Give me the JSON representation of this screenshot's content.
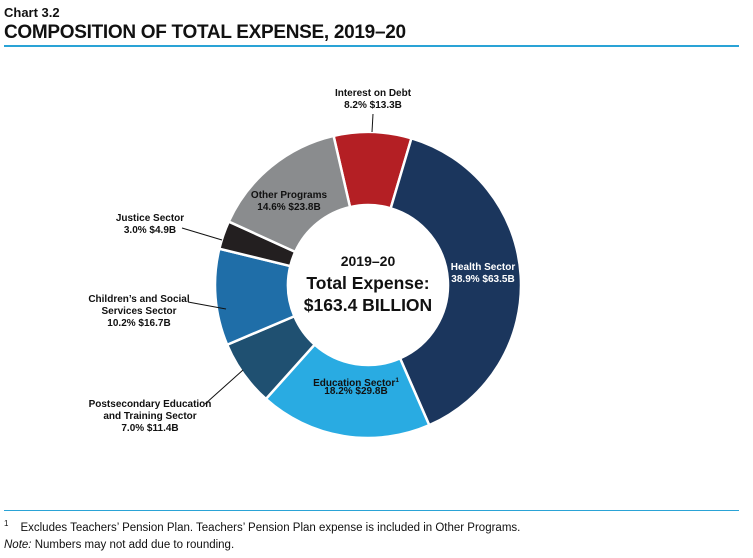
{
  "header": {
    "chart_number": "Chart 3.2",
    "title": "COMPOSITION OF TOTAL EXPENSE, 2019–20"
  },
  "center": {
    "year": "2019–20",
    "label": "Total Expense:",
    "amount": "$163.4 BILLION"
  },
  "footer": {
    "footnote_marker": "1",
    "footnote_text": "Excludes Teachers’ Pension Plan. Teachers’ Pension Plan expense is included in Other Programs.",
    "note_label": "Note:",
    "note_text": " Numbers may not add due to rounding."
  },
  "colors": {
    "interest": "#b41f24",
    "health": "#1b365d",
    "education": "#29abe2",
    "postsecondary": "#1f5071",
    "childrens": "#1f6ea8",
    "justice": "#231f20",
    "other": "#8a8c8e"
  },
  "chart_data": {
    "type": "pie",
    "style": "donut",
    "title": "COMPOSITION OF TOTAL EXPENSE, 2019–20",
    "total": "$163.4 BILLION",
    "unit_percent": "%",
    "unit_amount": "$B",
    "slices": [
      {
        "key": "interest",
        "lines": [
          "Interest on Debt"
        ],
        "sup": "",
        "percent": 8.2,
        "value_label": "8.2%  $13.3B",
        "amount": 13.3
      },
      {
        "key": "health",
        "lines": [
          "Health Sector"
        ],
        "sup": "",
        "percent": 38.9,
        "value_label": "38.9%  $63.5B",
        "amount": 63.5
      },
      {
        "key": "education",
        "lines": [
          "Education Sector"
        ],
        "sup": "1",
        "percent": 18.2,
        "value_label": "18.2%  $29.8B",
        "amount": 29.8
      },
      {
        "key": "postsecondary",
        "lines": [
          "Postsecondary Education",
          "and Training Sector"
        ],
        "sup": "",
        "percent": 7.0,
        "value_label": "7.0%  $11.4B",
        "amount": 11.4
      },
      {
        "key": "childrens",
        "lines": [
          "Children’s and Social",
          "Services Sector"
        ],
        "sup": "",
        "percent": 10.2,
        "value_label": "10.2%  $16.7B",
        "amount": 16.7
      },
      {
        "key": "justice",
        "lines": [
          "Justice Sector"
        ],
        "sup": "",
        "percent": 3.0,
        "value_label": "3.0%  $4.9B",
        "amount": 4.9
      },
      {
        "key": "other",
        "lines": [
          "Other Programs"
        ],
        "sup": "",
        "percent": 14.6,
        "value_label": "14.6%  $23.8B",
        "amount": 23.8
      }
    ]
  }
}
